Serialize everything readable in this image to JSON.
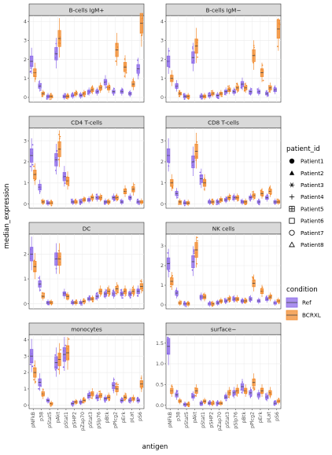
{
  "colors": {
    "ref": "#8C69E8",
    "bcrxl": "#F28C30",
    "panel_bg": "#ffffff",
    "panel_border": "#333333",
    "strip_bg": "#d9d9d9",
    "grid": "#ebebeb"
  },
  "chart_data": {
    "type": "boxplot",
    "xlabel": "antigen",
    "ylabel": "median_expression",
    "antigens": [
      "pNFkB",
      "p38",
      "pStat5",
      "pAkt",
      "pStat1",
      "pSHP2",
      "pZap70",
      "pStat3",
      "pSlp76",
      "pBtk",
      "pPlcg2",
      "pErk",
      "pLat",
      "pS6"
    ],
    "conditions": [
      "Ref",
      "BCRXL"
    ],
    "legend": {
      "patient_title": "patient_id",
      "patients": [
        {
          "label": "Patient1",
          "shape": "circle"
        },
        {
          "label": "Patient2",
          "shape": "triangle"
        },
        {
          "label": "Patient3",
          "shape": "asterisk"
        },
        {
          "label": "Patient4",
          "shape": "plus"
        },
        {
          "label": "Patient5",
          "shape": "boxed-plus"
        },
        {
          "label": "Patient6",
          "shape": "open-square"
        },
        {
          "label": "Patient7",
          "shape": "open-circle"
        },
        {
          "label": "Patient8",
          "shape": "open-triangle"
        }
      ],
      "condition_title": "condition",
      "conditions": [
        "Ref",
        "BCRXL"
      ]
    },
    "panels": [
      {
        "title": "B-cells IgM+",
        "ylim": [
          -0.25,
          4.3
        ],
        "yticks": [
          0,
          1,
          2,
          3,
          4
        ],
        "Ref": [
          1.9,
          0.6,
          0.05,
          2.3,
          0.05,
          0.1,
          0.1,
          0.3,
          0.3,
          0.8,
          0.3,
          0.3,
          0.2,
          1.5
        ],
        "BCRXL": [
          1.3,
          0.2,
          0.05,
          3.1,
          0.05,
          0.2,
          0.2,
          0.4,
          0.5,
          0.5,
          2.5,
          1.6,
          0.7,
          3.9
        ]
      },
      {
        "title": "B-cells IgM−",
        "ylim": [
          -0.25,
          4.3
        ],
        "yticks": [
          0,
          1,
          2,
          3,
          4
        ],
        "Ref": [
          1.9,
          0.6,
          0.05,
          2.1,
          0.05,
          0.1,
          0.1,
          0.3,
          0.3,
          0.7,
          0.3,
          0.3,
          0.2,
          0.4
        ],
        "BCRXL": [
          1.0,
          0.2,
          0.05,
          2.7,
          0.05,
          0.2,
          0.2,
          0.4,
          0.5,
          0.5,
          2.2,
          1.3,
          0.5,
          3.6
        ]
      },
      {
        "title": "CD4 T-cells",
        "ylim": [
          -0.2,
          3.6
        ],
        "yticks": [
          0,
          1,
          2,
          3
        ],
        "Ref": [
          2.3,
          0.8,
          0.05,
          2.1,
          1.3,
          0.1,
          0.1,
          0.2,
          0.3,
          0.1,
          0.3,
          0.1,
          0.3,
          0.1
        ],
        "BCRXL": [
          1.4,
          0.1,
          0.05,
          2.6,
          1.1,
          0.1,
          0.2,
          0.3,
          0.3,
          0.1,
          0.3,
          0.6,
          0.7,
          0.1
        ]
      },
      {
        "title": "CD8 T-cells",
        "ylim": [
          -0.2,
          3.6
        ],
        "yticks": [
          0,
          1,
          2,
          3
        ],
        "Ref": [
          2.3,
          0.5,
          0.05,
          2.0,
          1.2,
          0.1,
          0.1,
          0.2,
          0.3,
          0.1,
          0.3,
          0.1,
          0.3,
          0.1
        ],
        "BCRXL": [
          1.0,
          0.1,
          0.05,
          2.5,
          1.0,
          0.1,
          0.2,
          0.3,
          0.3,
          0.1,
          0.4,
          0.5,
          0.6,
          0.1
        ]
      },
      {
        "title": "DC",
        "ylim": [
          -0.2,
          2.8
        ],
        "yticks": [
          0,
          1,
          2
        ],
        "Ref": [
          2.0,
          0.8,
          0.05,
          1.8,
          0.4,
          0.05,
          0.05,
          0.2,
          0.3,
          0.4,
          0.4,
          0.4,
          0.4,
          0.5
        ],
        "BCRXL": [
          1.5,
          0.3,
          0.05,
          1.8,
          0.3,
          0.05,
          0.1,
          0.2,
          0.5,
          0.5,
          0.6,
          0.5,
          0.5,
          0.7
        ]
      },
      {
        "title": "NK cells",
        "ylim": [
          -0.2,
          3.6
        ],
        "yticks": [
          0,
          1,
          2,
          3
        ],
        "Ref": [
          2.1,
          0.6,
          0.05,
          2.2,
          0.4,
          0.05,
          0.1,
          0.2,
          0.3,
          0.2,
          0.3,
          0.2,
          0.3,
          0.1
        ],
        "BCRXL": [
          1.2,
          0.1,
          0.05,
          2.8,
          0.4,
          0.05,
          0.2,
          0.3,
          0.3,
          0.2,
          1.1,
          0.7,
          0.4,
          0.2
        ]
      },
      {
        "title": "monocytes",
        "ylim": [
          -0.2,
          4.3
        ],
        "yticks": [
          0,
          1,
          2,
          3,
          4
        ],
        "Ref": [
          3.0,
          1.4,
          0.3,
          2.6,
          3.1,
          0.1,
          0.2,
          0.6,
          0.5,
          0.4,
          1.2,
          0.3,
          0.3,
          0.3
        ],
        "BCRXL": [
          2.0,
          0.7,
          0.1,
          2.8,
          3.2,
          0.2,
          0.3,
          0.7,
          0.6,
          0.5,
          1.0,
          0.5,
          0.4,
          1.3
        ]
      },
      {
        "title": "surface−",
        "ylim": [
          -0.08,
          1.7
        ],
        "yticks": [
          0,
          0.5,
          1,
          1.5
        ],
        "ytick_labels": [
          "0.0",
          "0.5",
          "1.0",
          "1.5"
        ],
        "Ref": [
          1.42,
          0.25,
          0.02,
          0.22,
          0.05,
          0.05,
          0.05,
          0.2,
          0.3,
          0.45,
          0.3,
          0.25,
          0.2,
          0.05
        ],
        "BCRXL": [
          0.35,
          0.1,
          0.02,
          0.35,
          0.1,
          0.05,
          0.05,
          0.3,
          0.35,
          0.35,
          0.55,
          0.35,
          0.3,
          0.1
        ]
      }
    ]
  }
}
